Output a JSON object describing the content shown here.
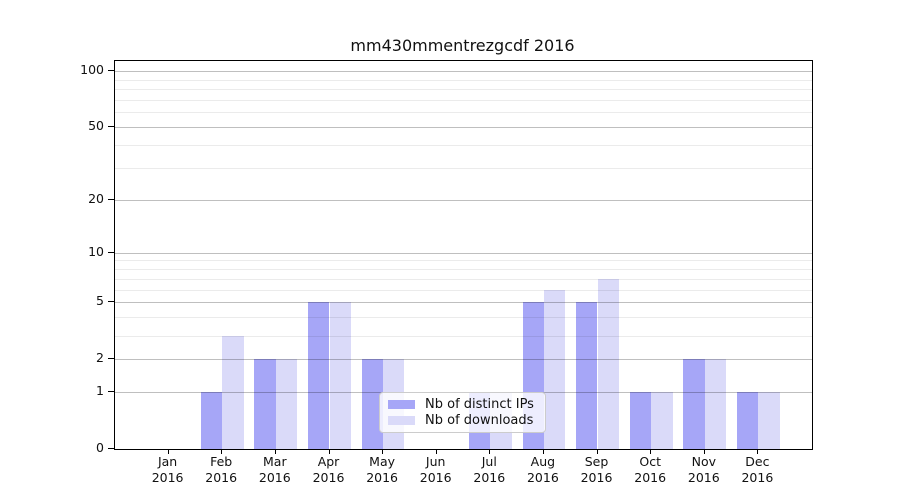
{
  "title": "mm430mmentrezgcdf 2016",
  "chart_data": {
    "type": "bar",
    "title": "mm430mmentrezgcdf 2016",
    "categories": [
      "Jan 2016",
      "Feb 2016",
      "Mar 2016",
      "Apr 2016",
      "May 2016",
      "Jun 2016",
      "Jul 2016",
      "Aug 2016",
      "Sep 2016",
      "Oct 2016",
      "Nov 2016",
      "Dec 2016"
    ],
    "series": [
      {
        "name": "Nb of distinct IPs",
        "color": "#a6a6f7",
        "values": [
          0,
          1,
          2,
          5,
          2,
          0,
          1,
          5,
          5,
          1,
          2,
          1
        ]
      },
      {
        "name": "Nb of downloads",
        "color": "#dadaf9",
        "values": [
          0,
          3,
          2,
          5,
          2,
          0,
          1,
          6,
          7,
          1,
          2,
          1
        ]
      }
    ],
    "xlabel": "",
    "ylabel": "",
    "yscale": "log1p",
    "ylim": [
      0,
      113
    ],
    "ytick_labels": [
      "100",
      "50",
      "20",
      "10",
      "5",
      "2",
      "1",
      "0"
    ],
    "minor_gridline_values": [
      3,
      4,
      6,
      7,
      8,
      9,
      30,
      40,
      60,
      70,
      80,
      90
    ],
    "grid": true,
    "legend_position": "lower center"
  }
}
